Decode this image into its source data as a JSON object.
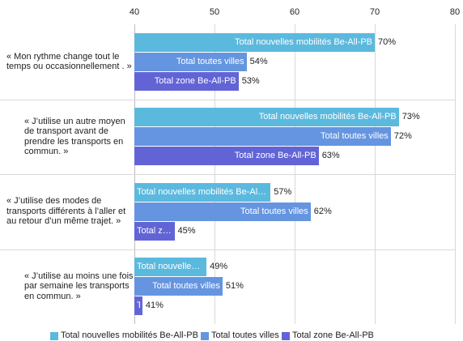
{
  "chart_data": {
    "type": "bar",
    "orientation": "horizontal",
    "categories": [
      "« Mon rythme change tout le temps ou occasionnellement . »",
      "« J’utilise un autre moyen de transport avant de prendre les transports en commun. »",
      "« J’utilise des modes de transports différents à l’aller et au retour d’un même trajet. »",
      "« J’utilise au moins une fois par semaine les transports en commun. »"
    ],
    "series": [
      {
        "name": "Total nouvelles mobilités Be-All-PB",
        "color": "#5bb9de",
        "values": [
          70,
          73,
          57,
          49
        ],
        "value_labels": [
          "70%",
          "73%",
          "57%",
          "49%"
        ]
      },
      {
        "name": "Total toutes villes",
        "color": "#6595e0",
        "values": [
          54,
          72,
          62,
          51
        ],
        "value_labels": [
          "54%",
          "72%",
          "62%",
          "51%"
        ]
      },
      {
        "name": "Total zone Be-All-PB",
        "color": "#6264d6",
        "values": [
          53,
          63,
          45,
          41
        ],
        "value_labels": [
          "53%",
          "63%",
          "45%",
          "41%"
        ]
      }
    ],
    "xlim": [
      40,
      80
    ],
    "xticks": [
      40,
      50,
      60,
      70,
      80
    ],
    "grid": true,
    "legend": "bottom"
  }
}
